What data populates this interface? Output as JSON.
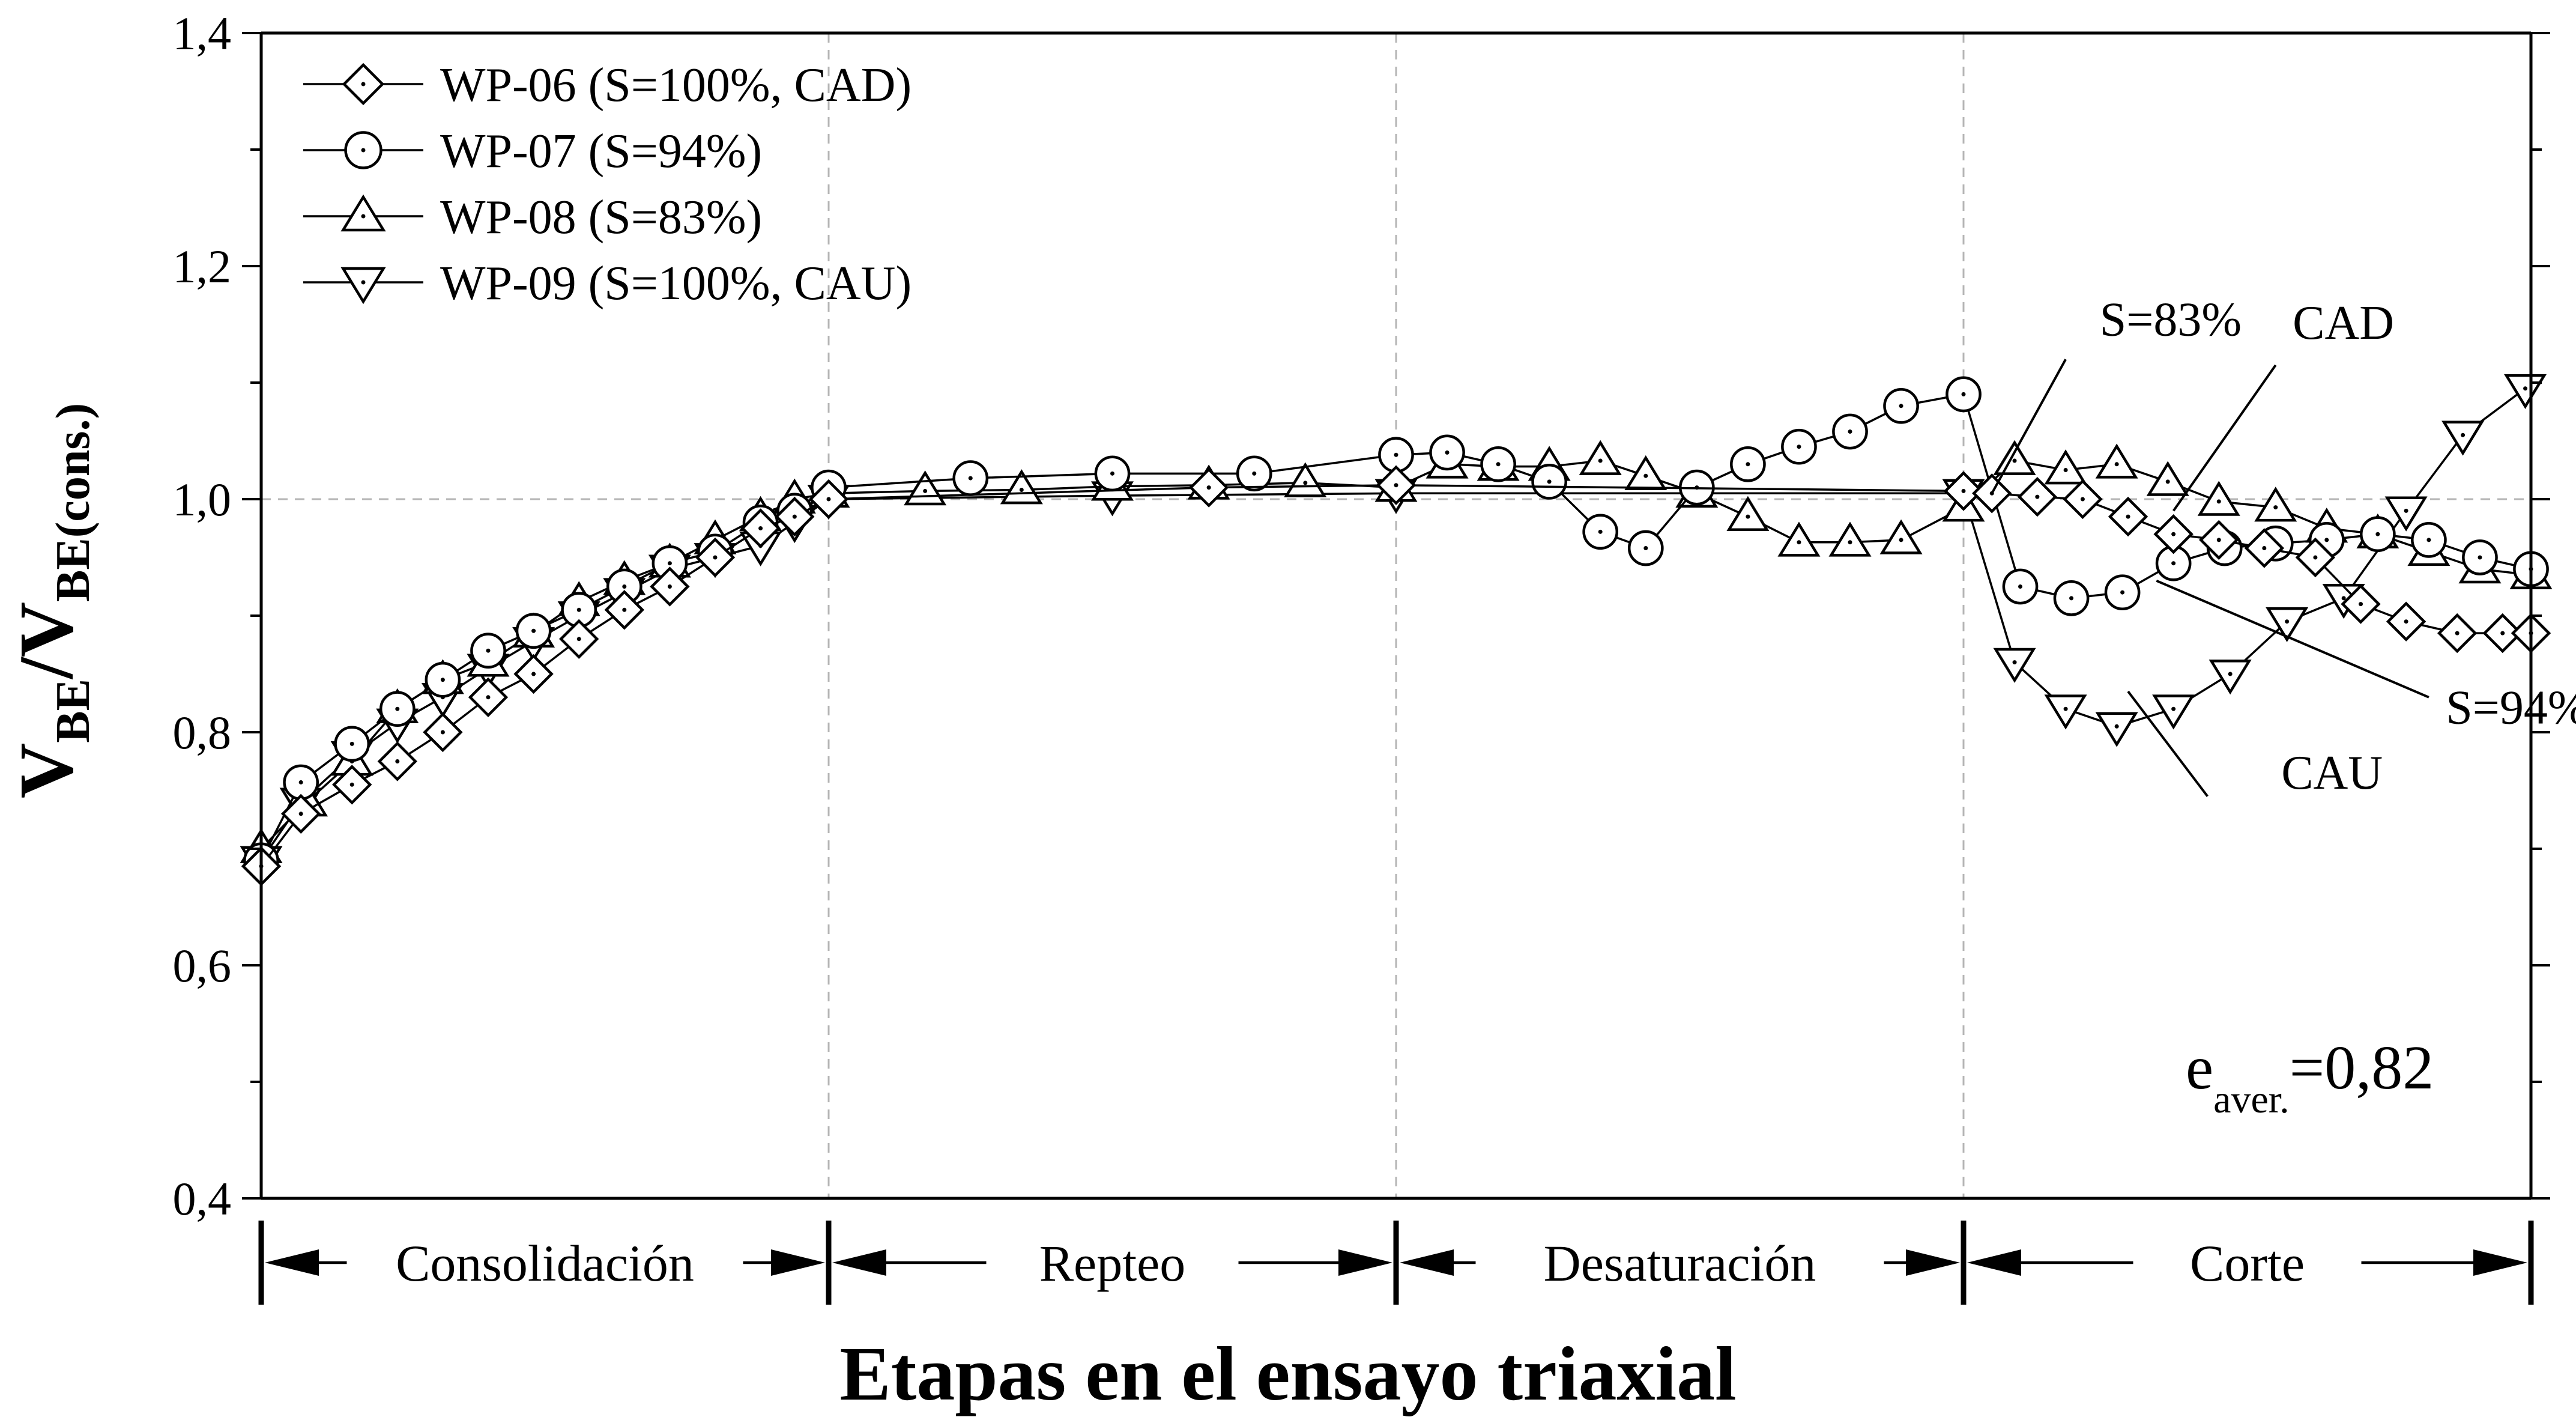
{
  "chart_data": {
    "type": "line",
    "title": "",
    "xlabel": "Etapas en el ensayo triaxial",
    "ylabel": {
      "main_1": "V",
      "sub_1": "BE",
      "slash": "/",
      "main_2": "V",
      "sub_2": "BE(cons.)"
    },
    "ylim": [
      0.4,
      1.4
    ],
    "xlim": [
      0,
      4
    ],
    "y_ticks": [
      {
        "value": 0.4,
        "label": "0,4"
      },
      {
        "value": 0.6,
        "label": "0,6"
      },
      {
        "value": 0.8,
        "label": "0,8"
      },
      {
        "value": 1.0,
        "label": "1,0"
      },
      {
        "value": 1.2,
        "label": "1,2"
      },
      {
        "value": 1.4,
        "label": "1,4"
      }
    ],
    "reference_line_y": 1.0,
    "stage_boundaries": [
      0,
      1,
      2,
      3,
      4
    ],
    "stages": [
      {
        "label": "Consolidación",
        "from": 0,
        "to": 1
      },
      {
        "label": "Repteo",
        "from": 1,
        "to": 2
      },
      {
        "label": "Desaturación",
        "from": 2,
        "to": 3
      },
      {
        "label": "Corte",
        "from": 3,
        "to": 4
      }
    ],
    "legend_position": "top-left",
    "series": [
      {
        "name": "WP-06 (S=100%, CAD)",
        "marker": "diamond",
        "x": [
          0,
          0.07,
          0.16,
          0.24,
          0.32,
          0.4,
          0.48,
          0.56,
          0.64,
          0.72,
          0.8,
          0.88,
          0.94,
          1.0,
          1.67,
          2.0,
          3.0,
          3.05,
          3.13,
          3.21,
          3.29,
          3.37,
          3.45,
          3.53,
          3.62,
          3.7,
          3.78,
          3.87,
          3.95,
          4.0
        ],
        "y": [
          0.685,
          0.73,
          0.755,
          0.775,
          0.8,
          0.83,
          0.85,
          0.88,
          0.905,
          0.925,
          0.95,
          0.975,
          0.985,
          1.0,
          1.01,
          1.012,
          1.007,
          1.005,
          1.002,
          1.0,
          0.985,
          0.97,
          0.965,
          0.958,
          0.95,
          0.91,
          0.895,
          0.885,
          0.885,
          0.885
        ]
      },
      {
        "name": "WP-07 (S=94%)",
        "marker": "circle",
        "x": [
          0,
          0.07,
          0.16,
          0.24,
          0.32,
          0.4,
          0.48,
          0.56,
          0.64,
          0.72,
          0.8,
          0.88,
          0.94,
          1.0,
          1.25,
          1.5,
          1.75,
          2.0,
          2.09,
          2.18,
          2.27,
          2.36,
          2.44,
          2.53,
          2.62,
          2.71,
          2.8,
          2.89,
          3.0,
          3.1,
          3.19,
          3.28,
          3.37,
          3.46,
          3.55,
          3.64,
          3.73,
          3.82,
          3.91,
          4.0
        ],
        "y": [
          0.69,
          0.757,
          0.79,
          0.82,
          0.845,
          0.87,
          0.887,
          0.905,
          0.925,
          0.945,
          0.955,
          0.98,
          0.99,
          1.01,
          1.018,
          1.022,
          1.022,
          1.038,
          1.04,
          1.03,
          1.015,
          0.972,
          0.958,
          1.01,
          1.03,
          1.045,
          1.058,
          1.08,
          1.09,
          0.925,
          0.915,
          0.92,
          0.945,
          0.958,
          0.962,
          0.965,
          0.97,
          0.965,
          0.95,
          0.94
        ]
      },
      {
        "name": "WP-08 (S=83%)",
        "marker": "triangle-up",
        "x": [
          0,
          0.08,
          0.16,
          0.24,
          0.32,
          0.4,
          0.48,
          0.56,
          0.64,
          0.72,
          0.8,
          0.88,
          0.94,
          1.0,
          1.17,
          1.34,
          1.5,
          1.67,
          1.84,
          2.0,
          2.09,
          2.18,
          2.27,
          2.36,
          2.44,
          2.53,
          2.62,
          2.71,
          2.8,
          2.89,
          3.0,
          3.09,
          3.18,
          3.27,
          3.36,
          3.45,
          3.55,
          3.64,
          3.73,
          3.82,
          3.91,
          4.0
        ],
        "y": [
          0.7,
          0.74,
          0.775,
          0.82,
          0.845,
          0.86,
          0.885,
          0.912,
          0.93,
          0.945,
          0.965,
          0.985,
          1.0,
          1.005,
          1.007,
          1.008,
          1.011,
          1.012,
          1.014,
          1.01,
          1.03,
          1.028,
          1.028,
          1.033,
          1.02,
          1.005,
          0.985,
          0.963,
          0.963,
          0.965,
          0.993,
          1.033,
          1.025,
          1.03,
          1.015,
          0.998,
          0.993,
          0.975,
          0.97,
          0.955,
          0.94,
          0.935
        ]
      },
      {
        "name": "WP-09 (S=100%, CAU)",
        "marker": "triangle-down",
        "x": [
          0,
          0.07,
          0.16,
          0.24,
          0.32,
          0.4,
          0.48,
          0.56,
          0.64,
          0.72,
          0.8,
          0.88,
          0.94,
          1.0,
          1.5,
          2.0,
          3.0,
          3.09,
          3.18,
          3.27,
          3.37,
          3.47,
          3.57,
          3.67,
          3.78,
          3.88,
          3.99
        ],
        "y": [
          0.69,
          0.74,
          0.78,
          0.808,
          0.83,
          0.855,
          0.878,
          0.9,
          0.92,
          0.94,
          0.95,
          0.96,
          0.98,
          1.0,
          1.003,
          1.005,
          1.005,
          0.86,
          0.82,
          0.805,
          0.82,
          0.85,
          0.895,
          0.915,
          0.99,
          1.055,
          1.095
        ]
      }
    ],
    "annotations": [
      {
        "text": "S=83%",
        "x": 3.24,
        "y": 1.155
      },
      {
        "text": "CAD",
        "x": 3.58,
        "y": 1.152
      },
      {
        "text": "S=94%",
        "x": 3.85,
        "y": 0.822
      },
      {
        "text": "CAU",
        "x": 3.56,
        "y": 0.766
      }
    ],
    "text_box": {
      "main": "e",
      "sub": "aver.",
      "value": "=0,82"
    }
  }
}
